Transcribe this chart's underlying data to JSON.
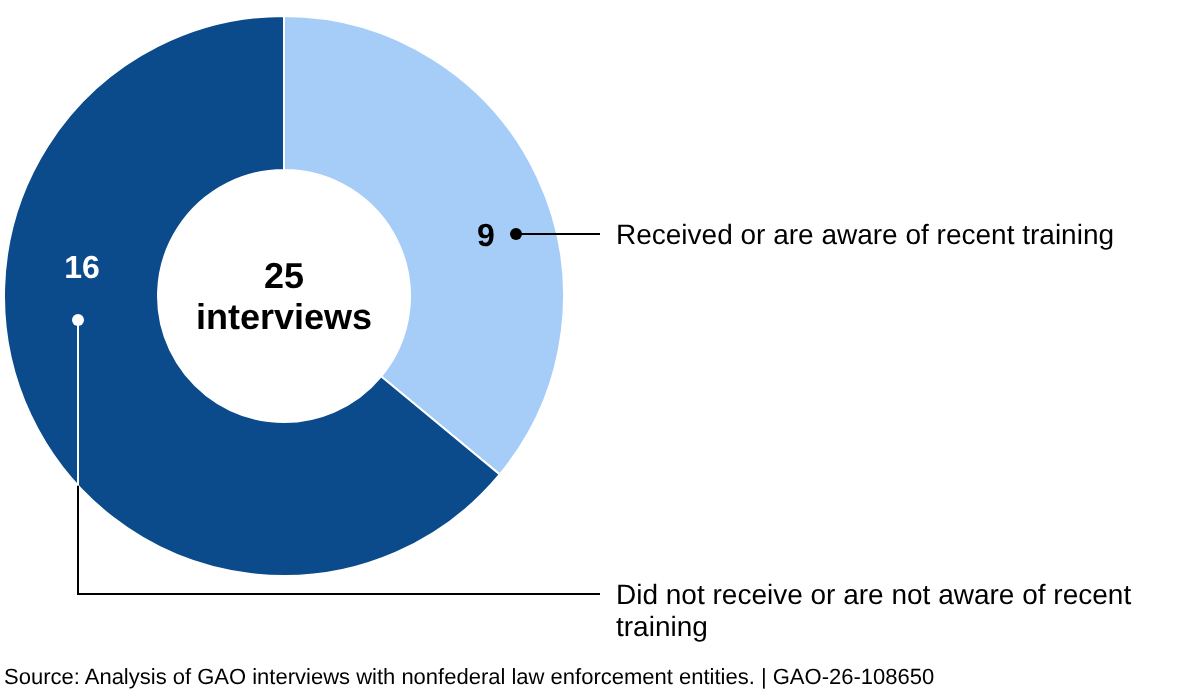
{
  "chart_data": {
    "type": "donut",
    "categories": [
      "Received or are aware of recent training",
      "Did not receive or are not aware of recent training"
    ],
    "values": [
      9,
      16
    ],
    "colors": [
      "#a6cdf7",
      "#0b4a8b"
    ],
    "data_labels": true,
    "annotations": [
      "25 interviews",
      "Source: Analysis of GAO interviews with nonfederal law enforcement entities.  |  GAO-26-108650"
    ]
  }
}
